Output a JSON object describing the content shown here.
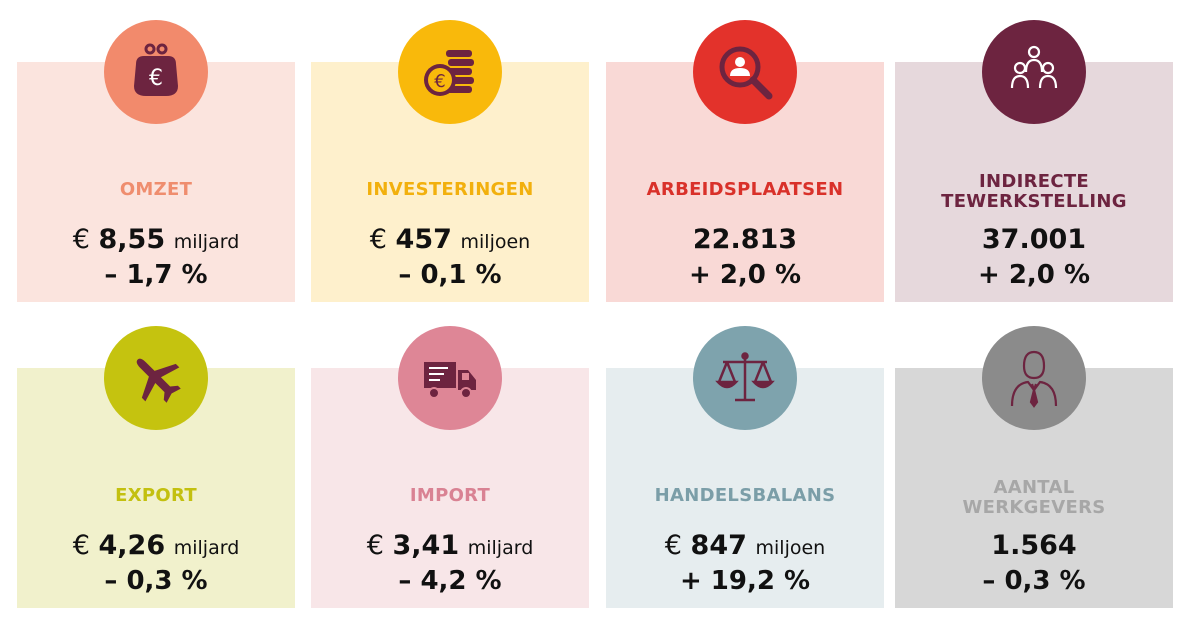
{
  "cards": [
    {
      "label_lines": [
        "OMZET"
      ],
      "currency": "€",
      "number": "8,55",
      "unit": "miljard",
      "change": "– 1,7 %",
      "icon": "wallet-euro-icon",
      "bg": "#fbe4de",
      "accent": "#f28a6c",
      "label_color": "#ef8d6e"
    },
    {
      "label_lines": [
        "INVESTERINGEN"
      ],
      "currency": "€",
      "number": "457",
      "unit": "miljoen",
      "change": "– 0,1 %",
      "icon": "coins-euro-icon",
      "bg": "#fef0cc",
      "accent": "#f9b90b",
      "label_color": "#f2b00d"
    },
    {
      "label_lines": [
        "ARBEIDSPLAATSEN"
      ],
      "currency": "",
      "number": "22.813",
      "unit": "",
      "change": "+ 2,0 %",
      "icon": "magnifier-person-icon",
      "bg": "#f9d9d6",
      "accent": "#e3322b",
      "label_color": "#d9312a"
    },
    {
      "label_lines": [
        "INDIRECTE",
        "TEWERKSTELLING"
      ],
      "currency": "",
      "number": "37.001",
      "unit": "",
      "change": "+ 2,0 %",
      "icon": "people-group-icon",
      "bg": "#e6d8dc",
      "accent": "#6d2440",
      "label_color": "#6d2440"
    },
    {
      "label_lines": [
        "EXPORT"
      ],
      "currency": "€",
      "number": "4,26",
      "unit": "miljard",
      "change": "– 0,3 %",
      "icon": "airplane-icon",
      "bg": "#f1f1cc",
      "accent": "#c5c30f",
      "label_color": "#c3c00f"
    },
    {
      "label_lines": [
        "IMPORT"
      ],
      "currency": "€",
      "number": "3,41",
      "unit": "miljard",
      "change": "– 4,2 %",
      "icon": "truck-icon",
      "bg": "#f8e6e8",
      "accent": "#de8696",
      "label_color": "#d98293"
    },
    {
      "label_lines": [
        "HANDELSBALANS"
      ],
      "currency": "€",
      "number": "847",
      "unit": "miljoen",
      "change": "+ 19,2 %",
      "icon": "scale-balance-icon",
      "bg": "#e6edef",
      "accent": "#7ea3ad",
      "label_color": "#7b9ea8"
    },
    {
      "label_lines": [
        "AANTAL",
        "WERKGEVERS"
      ],
      "currency": "",
      "number": "1.564",
      "unit": "",
      "change": "– 0,3 %",
      "icon": "businessman-icon",
      "bg": "#d7d7d7",
      "accent": "#8b8b8b",
      "label_color": "#a7a7a7"
    }
  ]
}
